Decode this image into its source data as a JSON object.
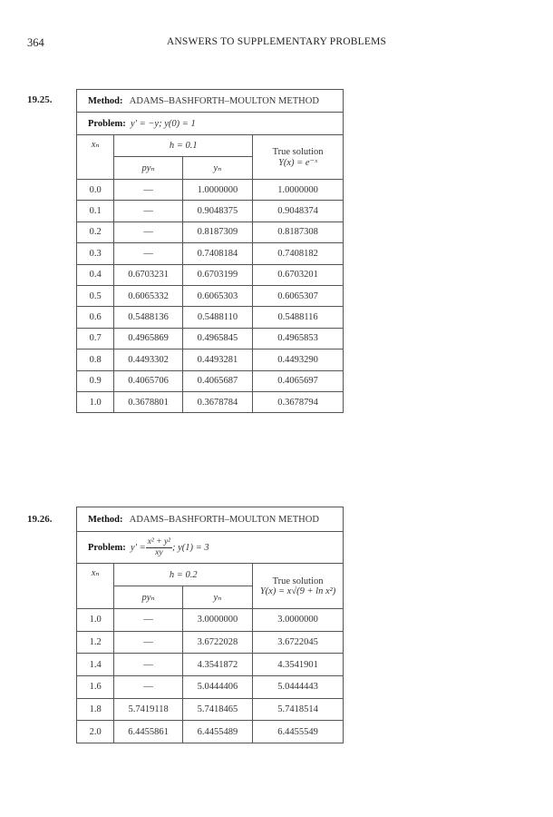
{
  "page": {
    "number": "364",
    "running_head": "ANSWERS TO SUPPLEMENTARY PROBLEMS"
  },
  "problems": [
    {
      "label": "19.25.",
      "method_label": "Method:",
      "method": "ADAMS–BASHFORTH–MOULTON METHOD",
      "problem_label": "Problem:",
      "equation": "y′ = −y; y(0) = 1",
      "col_x": "xₙ",
      "step": "h = 0.1",
      "col_py": "pyₙ",
      "col_y": "yₙ",
      "true_label": "True solution",
      "true_formula": "Y(x) = e⁻ˣ",
      "rows": [
        [
          "0.0",
          "—",
          "1.0000000",
          "1.0000000"
        ],
        [
          "0.1",
          "—",
          "0.9048375",
          "0.9048374"
        ],
        [
          "0.2",
          "—",
          "0.8187309",
          "0.8187308"
        ],
        [
          "0.3",
          "—",
          "0.7408184",
          "0.7408182"
        ],
        [
          "0.4",
          "0.6703231",
          "0.6703199",
          "0.6703201"
        ],
        [
          "0.5",
          "0.6065332",
          "0.6065303",
          "0.6065307"
        ],
        [
          "0.6",
          "0.5488136",
          "0.5488110",
          "0.5488116"
        ],
        [
          "0.7",
          "0.4965869",
          "0.4965845",
          "0.4965853"
        ],
        [
          "0.8",
          "0.4493302",
          "0.4493281",
          "0.4493290"
        ],
        [
          "0.9",
          "0.4065706",
          "0.4065687",
          "0.4065697"
        ],
        [
          "1.0",
          "0.3678801",
          "0.3678784",
          "0.3678794"
        ]
      ]
    },
    {
      "label": "19.26.",
      "method_label": "Method:",
      "method": "ADAMS–BASHFORTH–MOULTON METHOD",
      "problem_label": "Problem:",
      "equation_lhs": "y′ =",
      "equation_num": "x² + y²",
      "equation_den": "xy",
      "equation_rhs": ";   y(1) = 3",
      "col_x": "xₙ",
      "step": "h = 0.2",
      "col_py": "pyₙ",
      "col_y": "yₙ",
      "true_label": "True solution",
      "true_formula": "Y(x) = x√(9 + ln x²)",
      "rows": [
        [
          "1.0",
          "—",
          "3.0000000",
          "3.0000000"
        ],
        [
          "1.2",
          "—",
          "3.6722028",
          "3.6722045"
        ],
        [
          "1.4",
          "—",
          "4.3541872",
          "4.3541901"
        ],
        [
          "1.6",
          "—",
          "5.0444406",
          "5.0444443"
        ],
        [
          "1.8",
          "5.7419118",
          "5.7418465",
          "5.7418514"
        ],
        [
          "2.0",
          "6.4455861",
          "6.4455489",
          "6.4455549"
        ]
      ]
    }
  ]
}
